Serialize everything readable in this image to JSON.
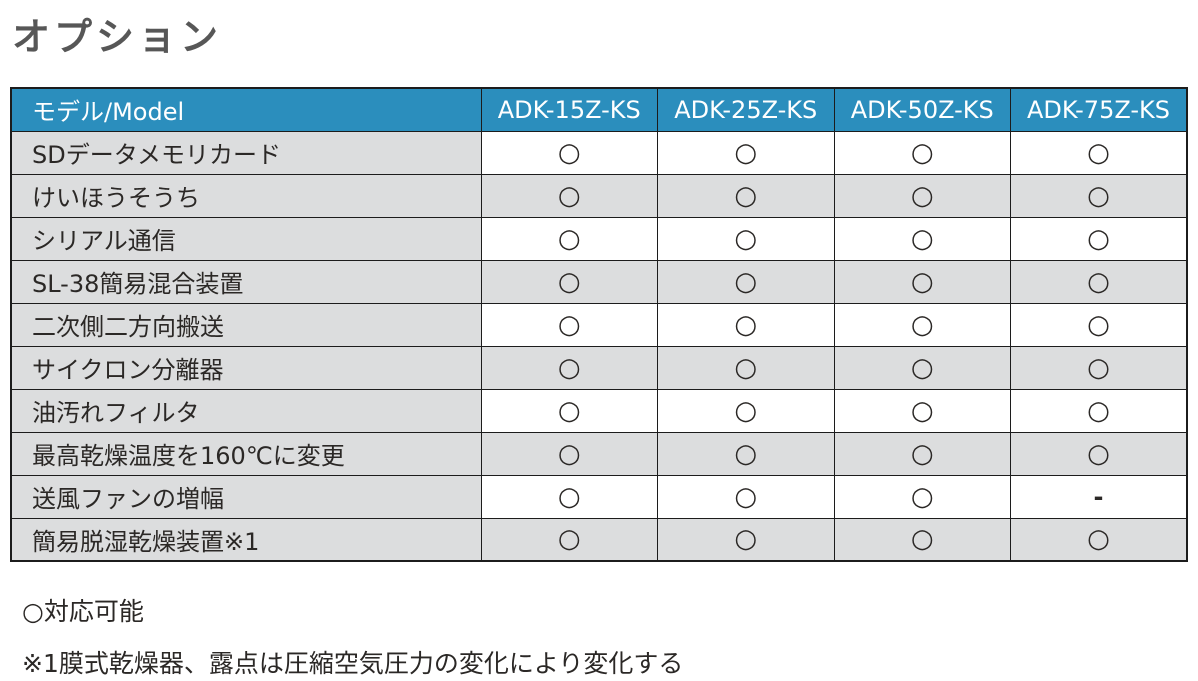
{
  "page_title": "オプション",
  "table": {
    "header": [
      "モデル/Model",
      "ADK-15Z-KS",
      "ADK-25Z-KS",
      "ADK-50Z-KS",
      "ADK-75Z-KS"
    ],
    "rows": [
      {
        "label": "SDデータメモリカード",
        "values": [
          "○",
          "○",
          "○",
          "○"
        ]
      },
      {
        "label": "けいほうそうち",
        "values": [
          "○",
          "○",
          "○",
          "○"
        ]
      },
      {
        "label": "シリアル通信",
        "values": [
          "○",
          "○",
          "○",
          "○"
        ]
      },
      {
        "label": "SL-38簡易混合装置",
        "values": [
          "○",
          "○",
          "○",
          "○"
        ]
      },
      {
        "label": "二次側二方向搬送",
        "values": [
          "○",
          "○",
          "○",
          "○"
        ]
      },
      {
        "label": "サイクロン分離器",
        "values": [
          "○",
          "○",
          "○",
          "○"
        ]
      },
      {
        "label": "油汚れフィルタ",
        "values": [
          "○",
          "○",
          "○",
          "○"
        ]
      },
      {
        "label": "最高乾燥温度を160℃に変更",
        "values": [
          "○",
          "○",
          "○",
          "○"
        ]
      },
      {
        "label": "送風ファンの増幅",
        "values": [
          "○",
          "○",
          "○",
          "-"
        ]
      },
      {
        "label": "簡易脱湿乾燥装置※1",
        "values": [
          "○",
          "○",
          "○",
          "○"
        ]
      }
    ]
  },
  "legend": {
    "circle_note": "○対応可能",
    "footnote": "※1膜式乾燥器、露点は圧縮空気圧力の変化により変化する"
  },
  "marks": {
    "available": "○",
    "not_available": "-"
  },
  "colors": {
    "header_bg": "#2B8EBD",
    "header_text": "#FFFFFF",
    "row_gray": "#DCDDDE",
    "row_white": "#FFFFFF",
    "border": "#1C1C1C",
    "title_text": "#575757",
    "body_text": "#2B2826"
  }
}
